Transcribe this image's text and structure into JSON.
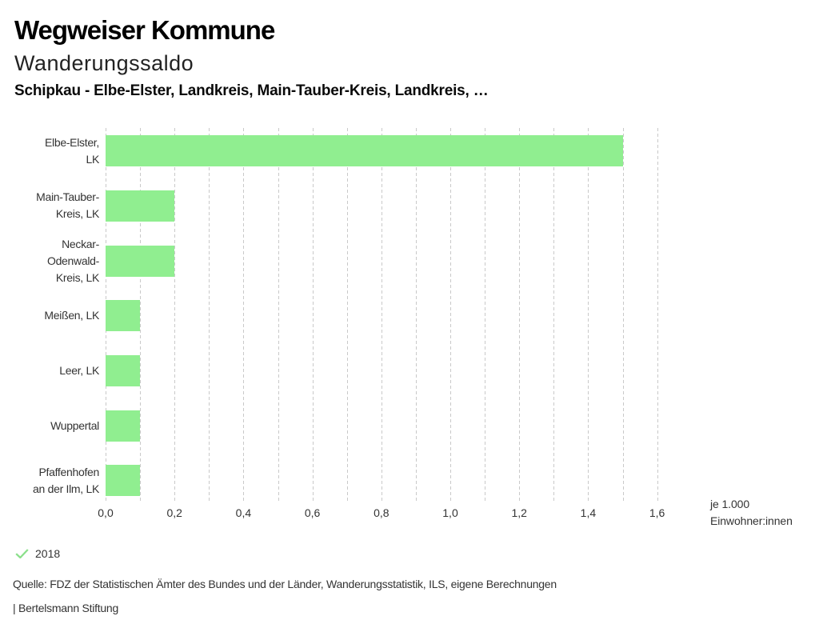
{
  "header": {
    "title": "Wegweiser Kommune",
    "subtitle": "Wanderungssaldo",
    "selection": "Schipkau - Elbe-Elster, Landkreis, Main-Tauber-Kreis, Landkreis, …"
  },
  "chart_data": {
    "type": "bar",
    "orientation": "horizontal",
    "title": "Wanderungssaldo",
    "unit_label_lines": [
      "je 1.000",
      "Einwohner:innen"
    ],
    "categories": [
      "Elbe-Elster, LK",
      "Main-Tauber-Kreis, LK",
      "Neckar-Odenwald-Kreis, LK",
      "Meißen, LK",
      "Leer, LK",
      "Wuppertal",
      "Pfaffenhofen an der Ilm, LK"
    ],
    "category_label_lines": [
      [
        "Elbe-Elster,",
        "LK"
      ],
      [
        "Main-Tauber-",
        "Kreis, LK"
      ],
      [
        "Neckar-",
        "Odenwald-",
        "Kreis, LK"
      ],
      [
        "Meißen, LK"
      ],
      [
        "Leer, LK"
      ],
      [
        "Wuppertal"
      ],
      [
        "Pfaffenhofen",
        "an der Ilm, LK"
      ]
    ],
    "series": [
      {
        "name": "2018",
        "color": "#90ee90",
        "values": [
          1.5,
          0.2,
          0.2,
          0.1,
          0.1,
          0.1,
          0.1
        ]
      }
    ],
    "xlim": [
      0,
      1.6
    ],
    "x_tick_labels": [
      "0,0",
      "0,2",
      "0,4",
      "0,6",
      "0,8",
      "1,0",
      "1,2",
      "1,4",
      "1,6"
    ],
    "x_tick_step": 0.2,
    "gridline_step": 0.1,
    "grid": true,
    "gridline_color": "#c9c9c9",
    "legend_position": "bottom-left"
  },
  "legend": {
    "year": "2018",
    "check_color": "#8ce08c"
  },
  "footer": {
    "source": "Quelle: FDZ der Statistischen Ämter des Bundes und der Länder, Wanderungsstatistik, ILS, eigene Berechnungen",
    "branding": "| Bertelsmann Stiftung"
  }
}
